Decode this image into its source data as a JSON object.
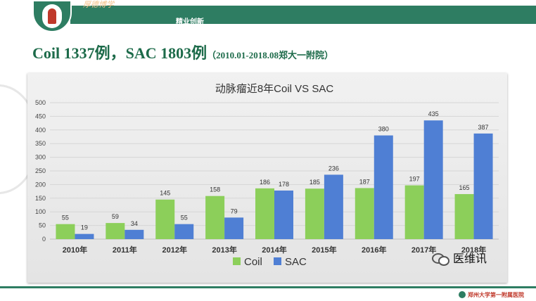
{
  "header": {
    "motto": "厚德博学",
    "slogan": "精业创新",
    "colors": {
      "band": "#2e7d62",
      "title": "#1d6b4a"
    }
  },
  "slide": {
    "title": "Coil 1337例，SAC 1803例",
    "subtitle": "（2010.01-2018.08郑大一附院）"
  },
  "chart_data": {
    "type": "bar",
    "title": "动脉瘤近8年Coil VS SAC",
    "categories": [
      "2010年",
      "2011年",
      "2012年",
      "2013年",
      "2014年",
      "2015年",
      "2016年",
      "2017年",
      "2018年"
    ],
    "series": [
      {
        "name": "Coil",
        "color": "#8ccf5a",
        "values": [
          55,
          59,
          145,
          158,
          186,
          185,
          187,
          197,
          165
        ]
      },
      {
        "name": "SAC",
        "color": "#4f7fd4",
        "values": [
          19,
          34,
          55,
          79,
          178,
          236,
          380,
          435,
          387
        ]
      }
    ],
    "ylim": [
      0,
      500
    ],
    "yticks": [
      0,
      50,
      100,
      150,
      200,
      250,
      300,
      350,
      400,
      450,
      500
    ],
    "grid": true,
    "legend": "bottom"
  },
  "footer": {
    "wechat": "医维讯",
    "hospital": "郑州大学第一附属医院"
  }
}
